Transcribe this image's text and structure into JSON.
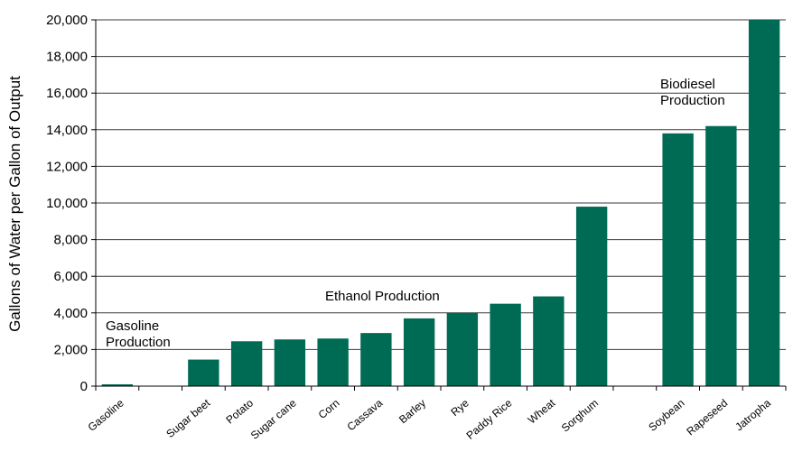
{
  "chart_data": {
    "type": "bar",
    "ylabel": "Gallons of Water per Gallon of Output",
    "xlabel": "",
    "ylim": [
      0,
      20000
    ],
    "yticks": [
      0,
      2000,
      4000,
      6000,
      8000,
      10000,
      12000,
      14000,
      16000,
      18000,
      20000
    ],
    "ytick_labels": [
      "0",
      "2,000",
      "4,000",
      "6,000",
      "8,000",
      "10,000",
      "12,000",
      "14,000",
      "16,000",
      "18,000",
      "20,000"
    ],
    "grid": true,
    "bar_color": "#006b54",
    "categories": [
      "Gasoline",
      "",
      "Sugar beet",
      "Potato",
      "Sugar cane",
      "Corn",
      "Cassava",
      "Barley",
      "Rye",
      "Paddy Rice",
      "Wheat",
      "Sorghum",
      "",
      "Soybean",
      "Rapeseed",
      "Jatropha"
    ],
    "values": [
      100,
      null,
      1450,
      2450,
      2550,
      2600,
      2900,
      3700,
      4000,
      4500,
      4900,
      9800,
      null,
      13800,
      14200,
      20000
    ],
    "annotations": [
      {
        "lines": [
          "Gasoline",
          "Production"
        ]
      },
      {
        "lines": [
          "Ethanol Production"
        ]
      },
      {
        "lines": [
          "Biodiesel",
          "Production"
        ]
      }
    ]
  }
}
